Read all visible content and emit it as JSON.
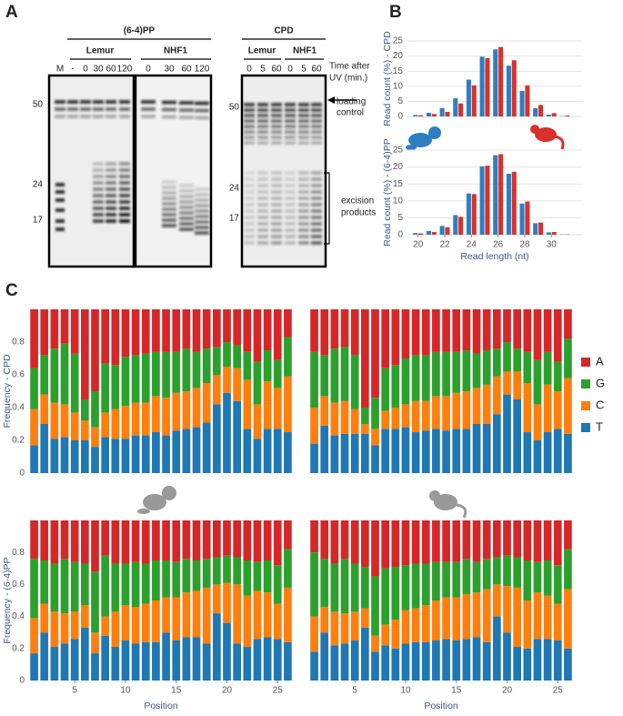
{
  "panel_labels": [
    "A",
    "B",
    "C"
  ],
  "gel": {
    "title_64": "(6-4)PP",
    "groups_64": [
      "Lemur",
      "NHF1"
    ],
    "lanes_64": [
      "M",
      "-",
      "0",
      "30",
      "60",
      "120",
      "0",
      "30",
      "60",
      "120"
    ],
    "markers_64": [
      "50",
      "24",
      "17"
    ],
    "title_cpd": "CPD",
    "groups_cpd": [
      "Lemur",
      "NHF1"
    ],
    "lanes_cpd": [
      "0",
      "5",
      "60",
      "0",
      "5",
      "60"
    ],
    "markers_cpd": [
      "50",
      "24",
      "17"
    ],
    "time_label": [
      "Time after",
      "UV (min.)"
    ],
    "loading_label": [
      "loading",
      "control"
    ],
    "excision_label": [
      "excision",
      "products"
    ]
  },
  "chart_data": [
    {
      "type": "bar",
      "ylabel": "Read count (%) - CPD",
      "x": [
        20,
        21,
        22,
        23,
        24,
        25,
        26,
        27,
        28,
        29,
        30,
        31
      ],
      "xlim": [
        19.2,
        32.3
      ],
      "ylim": [
        0,
        25
      ],
      "yticks": [
        0,
        5,
        10,
        15,
        20,
        25
      ],
      "grid": true,
      "series": [
        {
          "color": "#2e7fc1",
          "values": [
            0.5,
            1.2,
            2.8,
            6,
            12.2,
            19.8,
            22.2,
            16.8,
            8.5,
            2.7,
            0.6,
            0.1
          ]
        },
        {
          "color": "#d9312b",
          "values": [
            0.4,
            0.8,
            1.5,
            4.3,
            10.3,
            19.3,
            23.0,
            18.6,
            10.3,
            3.8,
            1.1,
            0.3
          ]
        }
      ]
    },
    {
      "type": "bar",
      "ylabel": "Read count (%) - (6-4)PP",
      "xlabel": "Read length (nt)",
      "x": [
        20,
        21,
        22,
        23,
        24,
        25,
        26,
        27,
        28,
        29,
        30,
        31
      ],
      "xlim": [
        19.2,
        32.3
      ],
      "xticks": [
        20,
        22,
        24,
        26,
        28,
        30
      ],
      "ylim": [
        0,
        25
      ],
      "yticks": [
        0,
        5,
        10,
        15,
        20,
        25
      ],
      "grid": true,
      "series": [
        {
          "color": "#2e7fc1",
          "values": [
            0.5,
            1.1,
            2.6,
            5.8,
            12.2,
            20.2,
            23.5,
            18,
            9.2,
            3.4,
            0.7,
            0.1
          ]
        },
        {
          "color": "#d9312b",
          "values": [
            0.4,
            0.8,
            2.2,
            5.3,
            12.0,
            20.4,
            23.8,
            18.6,
            9.8,
            3.6,
            0.8,
            0.1
          ]
        }
      ]
    },
    {
      "type": "stacked_bar",
      "ylabel": "Frequency - CPD",
      "x": [
        1,
        2,
        3,
        4,
        5,
        6,
        7,
        8,
        9,
        10,
        11,
        12,
        13,
        14,
        15,
        16,
        17,
        18,
        19,
        20,
        21,
        22,
        23,
        24,
        25,
        26
      ],
      "xlim": [
        0.5,
        26.5
      ],
      "ylim": [
        0,
        1
      ],
      "yticks": [
        0,
        0.2,
        0.4,
        0.6,
        0.8
      ],
      "series": [
        {
          "name": "T",
          "color": "#1f77b4",
          "values": [
            0.17,
            0.3,
            0.21,
            0.22,
            0.2,
            0.2,
            0.16,
            0.22,
            0.21,
            0.21,
            0.23,
            0.23,
            0.25,
            0.23,
            0.26,
            0.27,
            0.28,
            0.31,
            0.42,
            0.49,
            0.44,
            0.27,
            0.21,
            0.27,
            0.27,
            0.25
          ]
        },
        {
          "name": "C",
          "color": "#ff7f0e",
          "values": [
            0.22,
            0.18,
            0.22,
            0.2,
            0.17,
            0.12,
            0.12,
            0.15,
            0.18,
            0.2,
            0.2,
            0.2,
            0.22,
            0.23,
            0.23,
            0.23,
            0.24,
            0.24,
            0.18,
            0.16,
            0.2,
            0.3,
            0.21,
            0.29,
            0.25,
            0.34
          ]
        },
        {
          "name": "G",
          "color": "#2ca02c",
          "values": [
            0.25,
            0.24,
            0.33,
            0.37,
            0.36,
            0.13,
            0.22,
            0.3,
            0.27,
            0.3,
            0.29,
            0.3,
            0.27,
            0.28,
            0.25,
            0.26,
            0.22,
            0.21,
            0.17,
            0.15,
            0.14,
            0.17,
            0.26,
            0.19,
            0.17,
            0.24
          ]
        },
        {
          "name": "A",
          "color": "#d62728",
          "values": [
            0.36,
            0.28,
            0.24,
            0.21,
            0.27,
            0.55,
            0.5,
            0.33,
            0.34,
            0.29,
            0.28,
            0.27,
            0.26,
            0.26,
            0.26,
            0.24,
            0.26,
            0.24,
            0.23,
            0.2,
            0.22,
            0.26,
            0.32,
            0.25,
            0.31,
            0.17
          ]
        }
      ]
    },
    {
      "type": "stacked_bar",
      "legend": "right",
      "x": [
        1,
        2,
        3,
        4,
        5,
        6,
        7,
        8,
        9,
        10,
        11,
        12,
        13,
        14,
        15,
        16,
        17,
        18,
        19,
        20,
        21,
        22,
        23,
        24,
        25,
        26
      ],
      "xlim": [
        0.5,
        26.5
      ],
      "ylim": [
        0,
        1
      ],
      "series": [
        {
          "name": "T",
          "color": "#1f77b4",
          "values": [
            0.18,
            0.29,
            0.23,
            0.24,
            0.24,
            0.24,
            0.17,
            0.27,
            0.27,
            0.28,
            0.25,
            0.26,
            0.27,
            0.26,
            0.27,
            0.27,
            0.3,
            0.3,
            0.36,
            0.48,
            0.45,
            0.25,
            0.2,
            0.25,
            0.27,
            0.24
          ]
        },
        {
          "name": "C",
          "color": "#ff7f0e",
          "values": [
            0.22,
            0.18,
            0.2,
            0.2,
            0.15,
            0.06,
            0.1,
            0.11,
            0.13,
            0.14,
            0.19,
            0.18,
            0.2,
            0.21,
            0.22,
            0.23,
            0.22,
            0.24,
            0.23,
            0.14,
            0.17,
            0.3,
            0.22,
            0.29,
            0.23,
            0.34
          ]
        },
        {
          "name": "G",
          "color": "#2ca02c",
          "values": [
            0.34,
            0.25,
            0.33,
            0.33,
            0.33,
            0.1,
            0.19,
            0.26,
            0.26,
            0.28,
            0.28,
            0.28,
            0.27,
            0.27,
            0.25,
            0.25,
            0.21,
            0.21,
            0.17,
            0.18,
            0.14,
            0.19,
            0.27,
            0.2,
            0.18,
            0.24
          ]
        },
        {
          "name": "A",
          "color": "#d62728",
          "values": [
            0.26,
            0.28,
            0.24,
            0.23,
            0.28,
            0.6,
            0.54,
            0.36,
            0.34,
            0.3,
            0.28,
            0.28,
            0.26,
            0.26,
            0.26,
            0.25,
            0.27,
            0.25,
            0.24,
            0.2,
            0.24,
            0.26,
            0.31,
            0.26,
            0.32,
            0.18
          ]
        }
      ]
    },
    {
      "type": "stacked_bar",
      "ylabel": "Frequency - (6-4)PP",
      "xlabel": "Position",
      "x": [
        1,
        2,
        3,
        4,
        5,
        6,
        7,
        8,
        9,
        10,
        11,
        12,
        13,
        14,
        15,
        16,
        17,
        18,
        19,
        20,
        21,
        22,
        23,
        24,
        25,
        26
      ],
      "xlim": [
        0.5,
        26.5
      ],
      "xticks": [
        5,
        10,
        15,
        20,
        25
      ],
      "ylim": [
        0,
        1
      ],
      "yticks": [
        0,
        0.2,
        0.4,
        0.6,
        0.8
      ],
      "series": [
        {
          "name": "T",
          "color": "#1f77b4",
          "values": [
            0.17,
            0.3,
            0.21,
            0.23,
            0.26,
            0.33,
            0.17,
            0.28,
            0.21,
            0.25,
            0.23,
            0.24,
            0.24,
            0.3,
            0.25,
            0.27,
            0.27,
            0.23,
            0.42,
            0.36,
            0.23,
            0.21,
            0.26,
            0.27,
            0.26,
            0.24
          ]
        },
        {
          "name": "C",
          "color": "#ff7f0e",
          "values": [
            0.22,
            0.18,
            0.22,
            0.19,
            0.17,
            0.14,
            0.13,
            0.12,
            0.22,
            0.22,
            0.23,
            0.24,
            0.26,
            0.22,
            0.27,
            0.28,
            0.29,
            0.35,
            0.18,
            0.25,
            0.37,
            0.32,
            0.3,
            0.28,
            0.22,
            0.34
          ]
        },
        {
          "name": "G",
          "color": "#2ca02c",
          "values": [
            0.37,
            0.27,
            0.3,
            0.34,
            0.31,
            0.26,
            0.38,
            0.38,
            0.3,
            0.26,
            0.28,
            0.25,
            0.25,
            0.23,
            0.22,
            0.21,
            0.19,
            0.18,
            0.17,
            0.17,
            0.17,
            0.22,
            0.18,
            0.2,
            0.24,
            0.24
          ]
        },
        {
          "name": "A",
          "color": "#d62728",
          "values": [
            0.24,
            0.25,
            0.27,
            0.24,
            0.26,
            0.27,
            0.32,
            0.22,
            0.27,
            0.27,
            0.26,
            0.27,
            0.25,
            0.25,
            0.26,
            0.24,
            0.25,
            0.24,
            0.23,
            0.22,
            0.23,
            0.25,
            0.26,
            0.25,
            0.28,
            0.18
          ]
        }
      ]
    },
    {
      "type": "stacked_bar",
      "xlabel": "Position",
      "x": [
        1,
        2,
        3,
        4,
        5,
        6,
        7,
        8,
        9,
        10,
        11,
        12,
        13,
        14,
        15,
        16,
        17,
        18,
        19,
        20,
        21,
        22,
        23,
        24,
        25,
        26
      ],
      "xlim": [
        0.5,
        26.5
      ],
      "xticks": [
        5,
        10,
        15,
        20,
        25
      ],
      "ylim": [
        0,
        1
      ],
      "series": [
        {
          "name": "T",
          "color": "#1f77b4",
          "values": [
            0.18,
            0.3,
            0.22,
            0.23,
            0.25,
            0.33,
            0.18,
            0.22,
            0.2,
            0.23,
            0.24,
            0.24,
            0.25,
            0.26,
            0.25,
            0.26,
            0.27,
            0.24,
            0.4,
            0.3,
            0.21,
            0.2,
            0.26,
            0.26,
            0.25,
            0.2
          ]
        },
        {
          "name": "C",
          "color": "#ff7f0e",
          "values": [
            0.22,
            0.16,
            0.21,
            0.19,
            0.18,
            0.12,
            0.1,
            0.13,
            0.18,
            0.21,
            0.21,
            0.23,
            0.25,
            0.26,
            0.27,
            0.28,
            0.28,
            0.33,
            0.2,
            0.29,
            0.37,
            0.3,
            0.29,
            0.27,
            0.23,
            0.37
          ]
        },
        {
          "name": "G",
          "color": "#2ca02c",
          "values": [
            0.4,
            0.3,
            0.3,
            0.34,
            0.3,
            0.26,
            0.37,
            0.35,
            0.33,
            0.28,
            0.28,
            0.26,
            0.24,
            0.22,
            0.22,
            0.22,
            0.19,
            0.19,
            0.17,
            0.19,
            0.19,
            0.25,
            0.19,
            0.22,
            0.24,
            0.25
          ]
        },
        {
          "name": "A",
          "color": "#d62728",
          "values": [
            0.2,
            0.24,
            0.27,
            0.24,
            0.27,
            0.29,
            0.35,
            0.3,
            0.29,
            0.28,
            0.27,
            0.27,
            0.26,
            0.26,
            0.26,
            0.24,
            0.26,
            0.24,
            0.23,
            0.22,
            0.23,
            0.25,
            0.26,
            0.25,
            0.28,
            0.18
          ]
        }
      ]
    }
  ]
}
